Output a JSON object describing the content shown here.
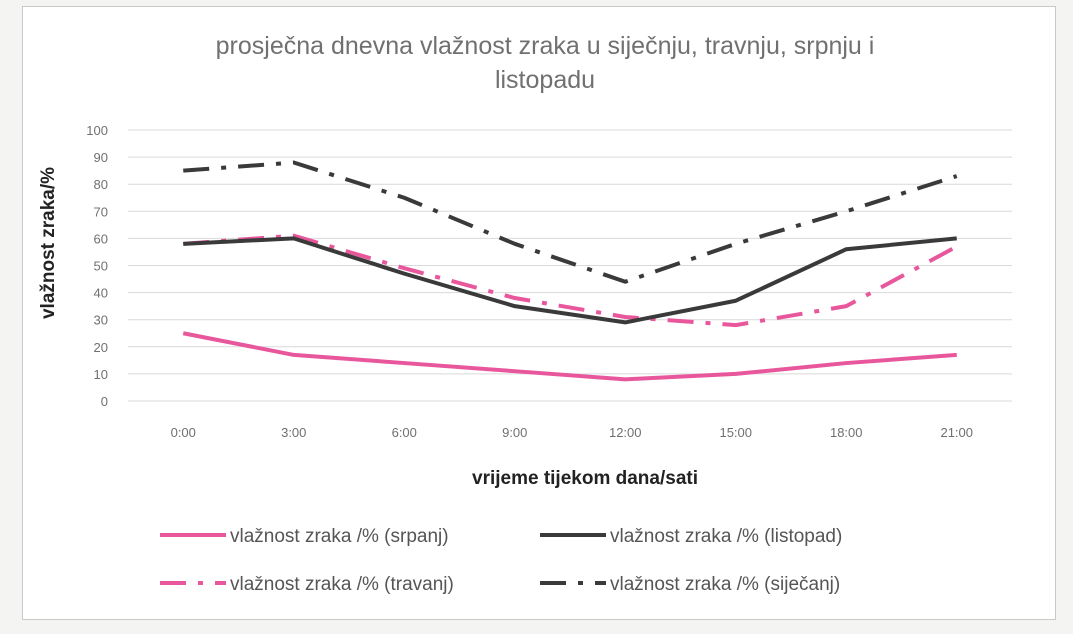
{
  "chart_data": {
    "type": "line",
    "title_lines": [
      "prosječna dnevna vlažnost zraka u siječnju, travnju, srpnju i",
      "listopadu"
    ],
    "xlabel": "vrijeme tijekom dana/sati",
    "ylabel": "vlažnost zraka/%",
    "categories": [
      "0:00",
      "3:00",
      "6:00",
      "9:00",
      "12:00",
      "15:00",
      "18:00",
      "21:00"
    ],
    "ylim": [
      0,
      100
    ],
    "yticks": [
      "0",
      "10",
      "20",
      "30",
      "40",
      "50",
      "60",
      "70",
      "80",
      "90",
      "100"
    ],
    "grid": true,
    "legend_position": "bottom",
    "series": [
      {
        "name": "vlažnost zraka /% (srpanj)",
        "color": "#e8579c",
        "style": "solid",
        "values": [
          25,
          17,
          14,
          11,
          8,
          10,
          14,
          17
        ]
      },
      {
        "name": "vlažnost zraka /% (listopad)",
        "color": "#3a3a3a",
        "style": "solid",
        "values": [
          58,
          60,
          47,
          35,
          29,
          37,
          56,
          60
        ]
      },
      {
        "name": "vlažnost zraka /% (travanj)",
        "color": "#e8579c",
        "style": "dashdot",
        "values": [
          58,
          61,
          49,
          38,
          31,
          28,
          35,
          57
        ]
      },
      {
        "name": "vlažnost zraka /% (siječanj)",
        "color": "#3a3a3a",
        "style": "dashdot",
        "values": [
          85,
          88,
          75,
          58,
          44,
          58,
          70,
          83
        ]
      }
    ]
  }
}
